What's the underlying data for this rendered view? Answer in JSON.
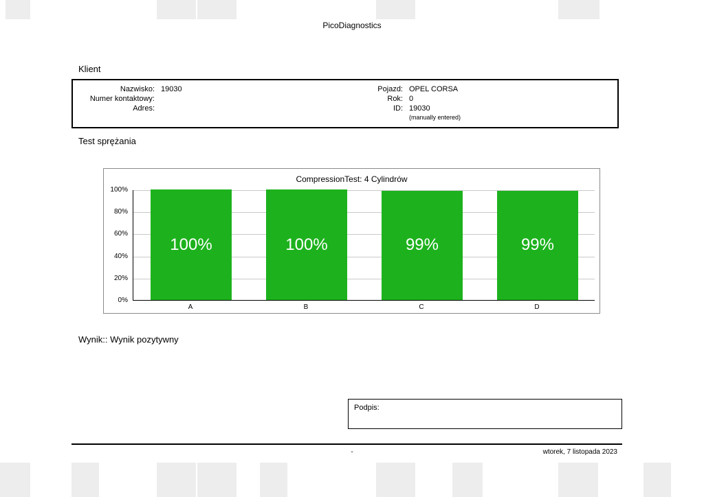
{
  "page": {
    "app_title": "PicoDiagnostics",
    "footer": {
      "center": "-",
      "date": "wtorek, 7 listopada 2023"
    }
  },
  "client": {
    "section_title": "Klient",
    "left": {
      "labels": [
        "Nazwisko:",
        "Numer kontaktowy:",
        "Adres:"
      ],
      "values": [
        "19030",
        "",
        ""
      ]
    },
    "right": {
      "labels": [
        "Pojazd:",
        "Rok:",
        "ID:"
      ],
      "values": [
        "OPEL CORSA",
        "0",
        "19030"
      ],
      "note": "(manually entered)"
    }
  },
  "test": {
    "section_title": "Test sprężania",
    "result_text": "Wynik:: Wynik pozytywny"
  },
  "signature": {
    "label": "Podpis:"
  },
  "chart_data": {
    "type": "bar",
    "title": "CompressionTest: 4 Cylindrów",
    "categories": [
      "A",
      "B",
      "C",
      "D"
    ],
    "values": [
      100,
      100,
      99,
      99
    ],
    "bar_labels": [
      "100%",
      "100%",
      "99%",
      "99%"
    ],
    "y_ticks": [
      "100%",
      "80%",
      "60%",
      "40%",
      "20%",
      "0%"
    ],
    "ylim": [
      0,
      100
    ],
    "bar_color": "#1db21d",
    "grid": true,
    "legend": false
  }
}
